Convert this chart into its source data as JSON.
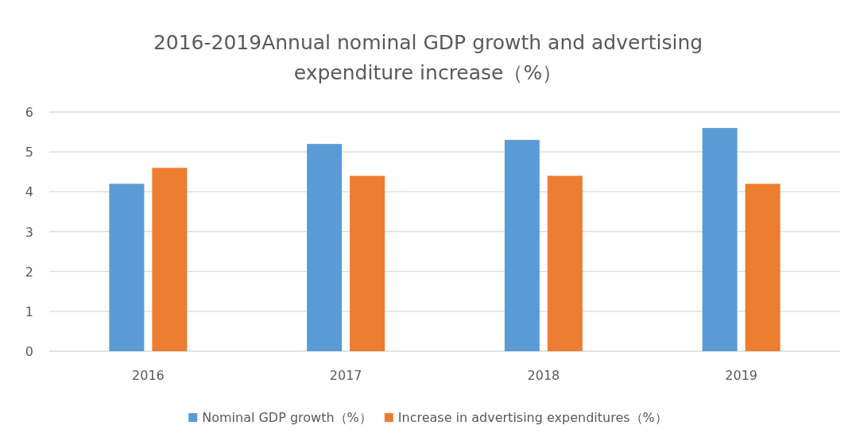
{
  "chart_data": {
    "type": "bar",
    "title": "2016-2019Annual nominal GDP growth and advertising expenditure increase（%）",
    "categories": [
      "2016",
      "2017",
      "2018",
      "2019"
    ],
    "series": [
      {
        "name": "Nominal GDP growth（%）",
        "color": "#5b9bd5",
        "values": [
          4.2,
          5.2,
          5.3,
          5.6
        ]
      },
      {
        "name": "Increase in advertising expenditures（%）",
        "color": "#ed7d31",
        "values": [
          4.6,
          4.4,
          4.4,
          4.2
        ]
      }
    ],
    "ylim": [
      0,
      6
    ],
    "yticks": [
      0,
      1,
      2,
      3,
      4,
      5,
      6
    ],
    "grid": "y",
    "legend": "bottom"
  }
}
